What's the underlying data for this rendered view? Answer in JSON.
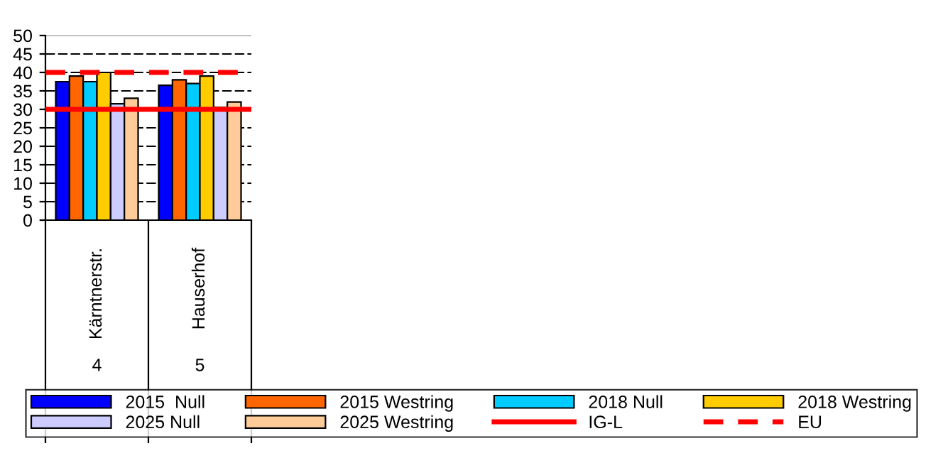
{
  "chart_data": {
    "type": "bar",
    "categories": [
      "Kärntnerstr.",
      "Hauserhof"
    ],
    "annotations": [
      "4",
      "5"
    ],
    "series": [
      {
        "name": "2015  Null",
        "color": "#0000ff",
        "values": [
          37.5,
          36.5
        ]
      },
      {
        "name": "2015 Westring",
        "color": "#ff6600",
        "values": [
          39,
          38
        ]
      },
      {
        "name": "2018 Null",
        "color": "#00ccff",
        "values": [
          37.5,
          37
        ]
      },
      {
        "name": "2018 Westring",
        "color": "#ffcc00",
        "values": [
          40,
          39
        ]
      },
      {
        "name": "2025 Null",
        "color": "#ccccff",
        "values": [
          31.5,
          30.5
        ]
      },
      {
        "name": "2025 Westring",
        "color": "#ffcc99",
        "values": [
          33,
          32
        ]
      }
    ],
    "ref_lines": [
      {
        "axis": "y",
        "value": 30,
        "label": "IG-L",
        "color": "#ff0000",
        "line_style": "solid"
      },
      {
        "axis": "y",
        "value": 40,
        "label": "EU",
        "color": "#ff0000",
        "line_style": "dashed"
      }
    ],
    "ylim": [
      0,
      50
    ],
    "yticks": [
      0,
      5,
      10,
      15,
      20,
      25,
      30,
      35,
      40,
      45,
      50
    ],
    "grid": "y",
    "legend": "bottom"
  }
}
